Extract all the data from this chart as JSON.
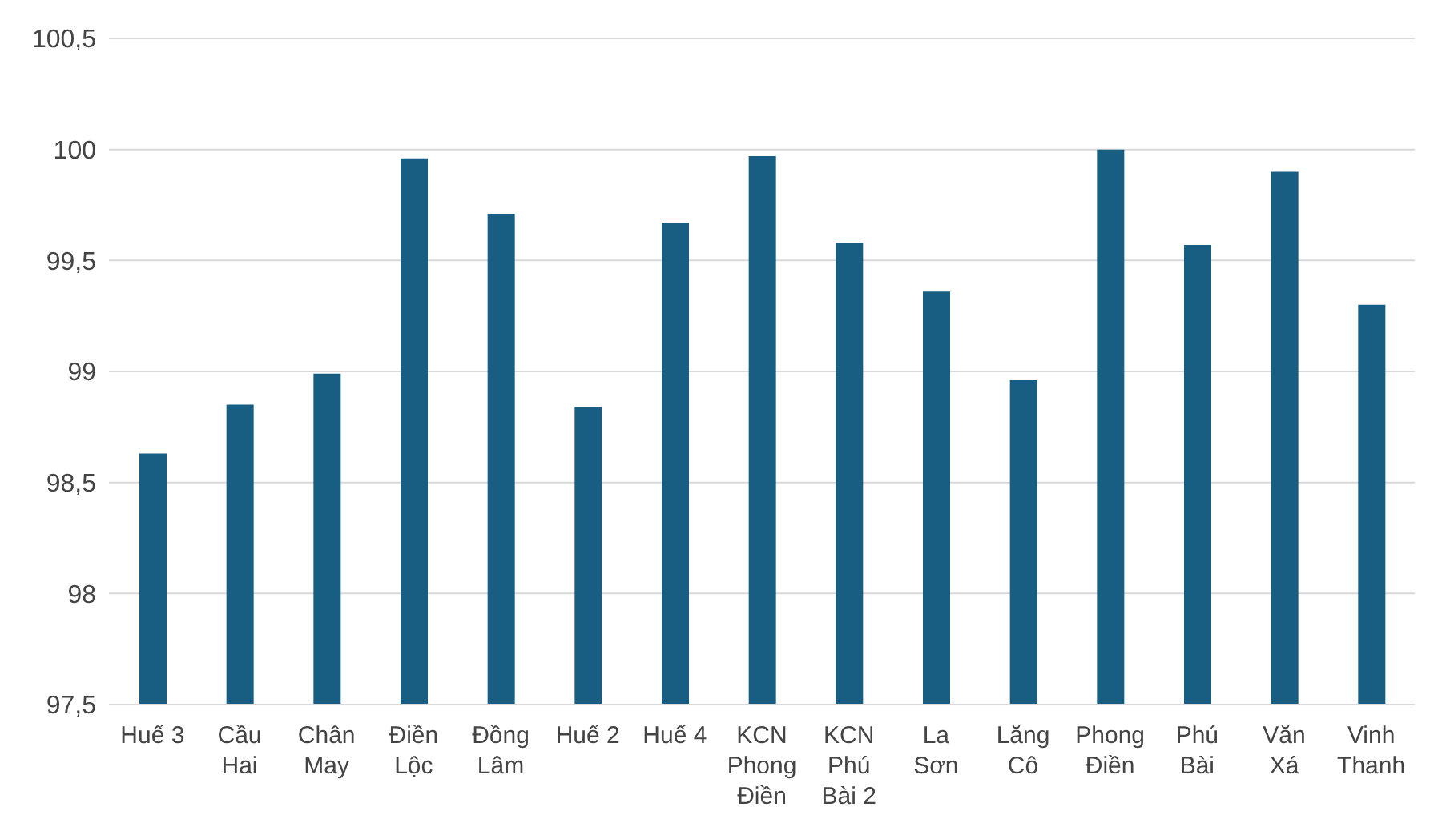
{
  "chart_data": {
    "type": "bar",
    "categories": [
      "Huế 3",
      "Cầu Hai",
      "Chân May",
      "Điền Lộc",
      "Đồng Lâm",
      "Huế 2",
      "Huế 4",
      "KCN Phong Điền",
      "KCN Phú Bài 2",
      "La Sơn",
      "Lăng Cô",
      "Phong Điền",
      "Phú Bài",
      "Văn Xá",
      "Vinh Thanh"
    ],
    "values": [
      98.63,
      98.85,
      98.99,
      99.96,
      99.71,
      98.84,
      99.67,
      99.97,
      99.58,
      99.36,
      98.96,
      100.0,
      99.57,
      99.9,
      99.3
    ],
    "color": "#175e82",
    "ylim": [
      97.5,
      100.5
    ],
    "yticks": [
      {
        "value": 97.5,
        "label": "97,5"
      },
      {
        "value": 98,
        "label": "98"
      },
      {
        "value": 98.5,
        "label": "98,5"
      },
      {
        "value": 99,
        "label": "99"
      },
      {
        "value": 99.5,
        "label": "99,5"
      },
      {
        "value": 100,
        "label": "100"
      },
      {
        "value": 100.5,
        "label": "100,5"
      }
    ],
    "grid": "y"
  }
}
